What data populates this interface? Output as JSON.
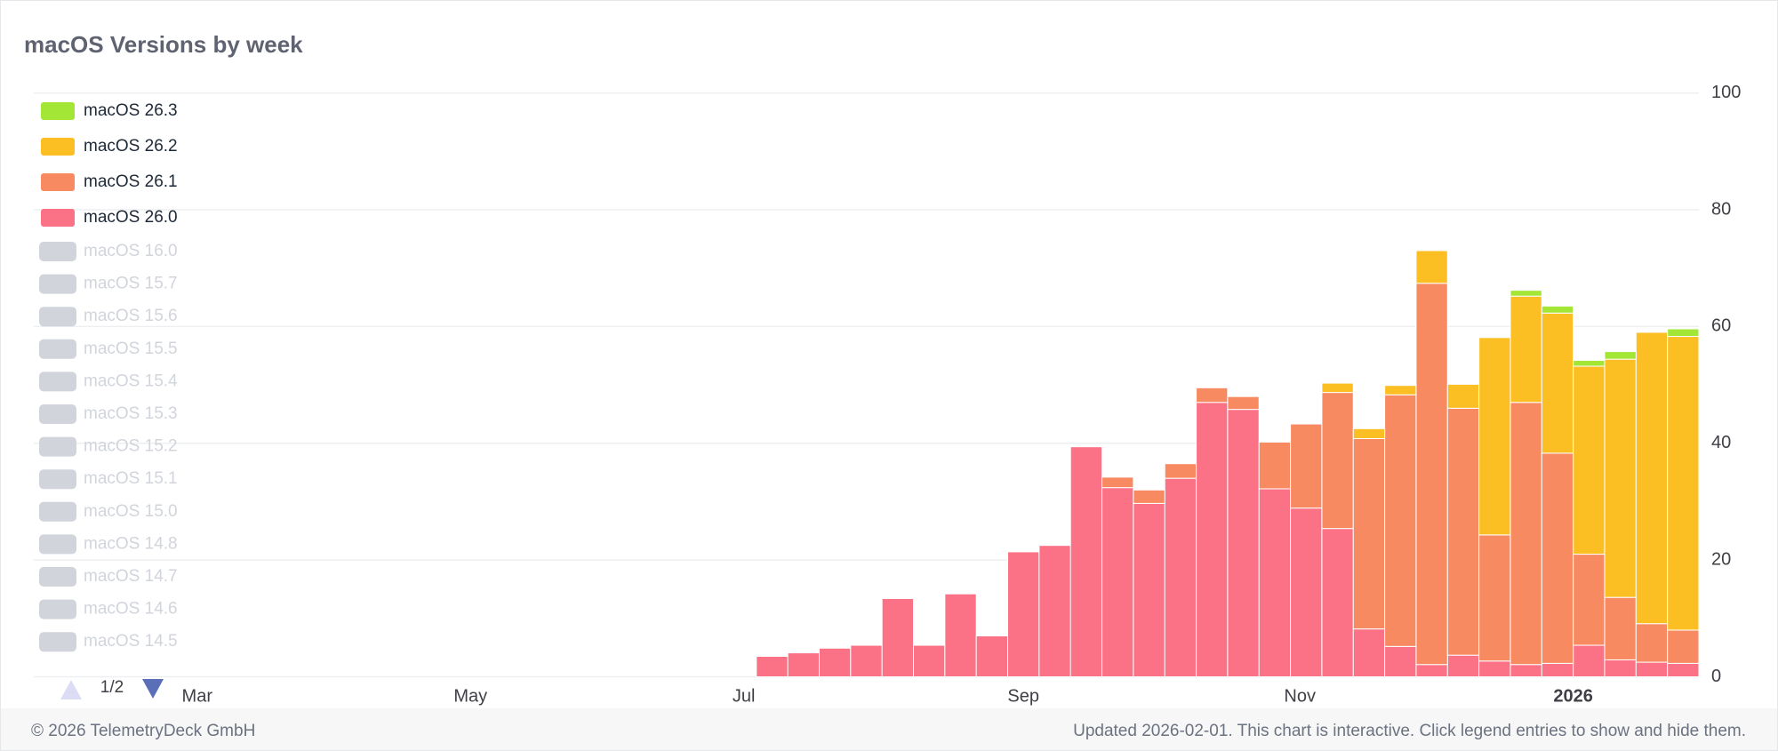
{
  "chart_data": {
    "type": "stacked_bar",
    "title": "macOS Versions by week",
    "categories": [
      null,
      null,
      null,
      null,
      null,
      null,
      null,
      null,
      null,
      null,
      null,
      null,
      null,
      null,
      null,
      null,
      null,
      null,
      null,
      null,
      null,
      null,
      null,
      null,
      null,
      null,
      null,
      null,
      null,
      null
    ],
    "series": [
      {
        "name": "macOS 26.0",
        "color": "#fb7185",
        "values": [
          3.5,
          4.1,
          4.9,
          5.4,
          13.4,
          5.4,
          14.2,
          7.0,
          21.4,
          22.5,
          39.4,
          32.4,
          29.7,
          34.0,
          47.0,
          45.8,
          32.2,
          28.9,
          25.4,
          8.2,
          5.2,
          2.1,
          3.7,
          2.7,
          2.1,
          2.3,
          5.4,
          2.9,
          2.5,
          2.3
        ]
      },
      {
        "name": "macOS 26.1",
        "color": "#f88a62",
        "values": [
          0,
          0,
          0,
          0,
          0,
          0,
          0,
          0,
          0,
          0,
          0,
          1.8,
          2.3,
          2.5,
          2.5,
          2.2,
          8.0,
          14.4,
          23.3,
          32.6,
          43.1,
          65.3,
          42.3,
          21.6,
          44.9,
          36.0,
          15.6,
          10.7,
          6.6,
          5.7
        ]
      },
      {
        "name": "macOS 26.2",
        "color": "#fbbf24",
        "values": [
          0,
          0,
          0,
          0,
          0,
          0,
          0,
          0,
          0,
          0,
          0,
          0,
          0,
          0,
          0,
          0,
          0,
          0,
          1.6,
          1.7,
          1.6,
          5.6,
          4.1,
          33.8,
          18.2,
          24.0,
          32.2,
          40.8,
          49.9,
          50.3
        ]
      },
      {
        "name": "macOS 26.3",
        "color": "#a3e635",
        "values": [
          0,
          0,
          0,
          0,
          0,
          0,
          0,
          0,
          0,
          0,
          0,
          0,
          0,
          0,
          0,
          0,
          0,
          0,
          0,
          0,
          0,
          0,
          0,
          0,
          1.0,
          1.2,
          1.0,
          1.3,
          0,
          1.3
        ]
      }
    ],
    "hidden_series": [
      "macOS 16.0",
      "macOS 15.7",
      "macOS 15.6",
      "macOS 15.5",
      "macOS 15.4",
      "macOS 15.3",
      "macOS 15.2",
      "macOS 15.1",
      "macOS 15.0",
      "macOS 14.8",
      "macOS 14.7",
      "macOS 14.6",
      "macOS 14.5"
    ],
    "hidden_color": "#d1d5db",
    "legend_page": "1/2",
    "xlim": [
      -23.5,
      29.5
    ],
    "xticks": [
      {
        "value": -18.3,
        "label": "Mar"
      },
      {
        "value": -9.6,
        "label": "May"
      },
      {
        "value": -0.9,
        "label": "Jul"
      },
      {
        "value": 8.0,
        "label": "Sep"
      },
      {
        "value": 16.8,
        "label": "Nov"
      },
      {
        "value": 25.5,
        "label": "2026"
      }
    ],
    "ylim": [
      0,
      100
    ],
    "yticks": [
      0,
      20,
      40,
      60,
      80,
      100
    ],
    "grid": true,
    "y_axis_side": "right",
    "legend_position": "top-left"
  },
  "footer": {
    "copyright": "© 2026 TelemetryDeck GmbH",
    "note": "Updated 2026-02-01. This chart is interactive. Click legend entries to show and hide them."
  }
}
